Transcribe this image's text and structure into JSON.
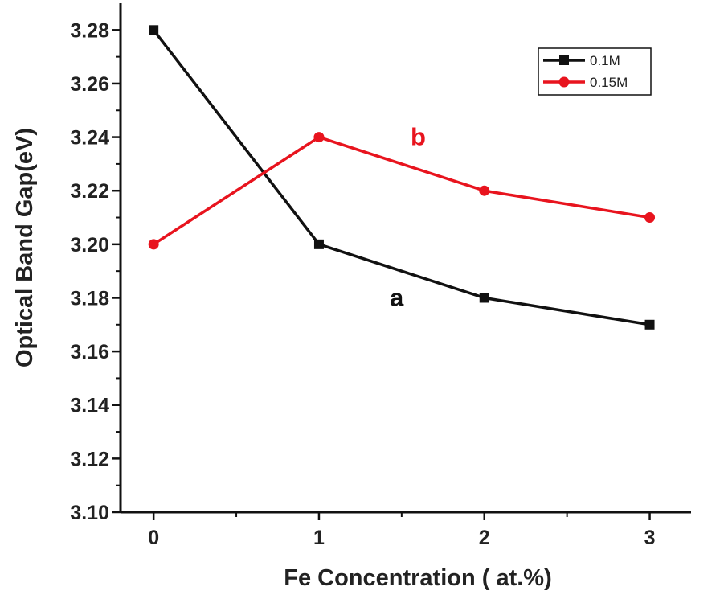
{
  "chart_data": {
    "type": "line",
    "title": "",
    "xlabel": "Fe Concentration ( at.%)",
    "ylabel": "Optical Band Gap(eV)",
    "xlim": [
      -0.2,
      3.25
    ],
    "ylim": [
      3.1,
      3.29
    ],
    "x": [
      0,
      1,
      2,
      3
    ],
    "xticks": [
      0,
      1,
      2,
      3
    ],
    "xtick_labels": [
      "0",
      "1",
      "2",
      "3"
    ],
    "yticks": [
      3.1,
      3.12,
      3.14,
      3.16,
      3.18,
      3.2,
      3.22,
      3.24,
      3.26,
      3.28
    ],
    "ytick_labels": [
      "3.10",
      "3.12",
      "3.14",
      "3.16",
      "3.18",
      "3.20",
      "3.22",
      "3.24",
      "3.26",
      "3.28"
    ],
    "grid": false,
    "legend_position": "top-right",
    "series": [
      {
        "name": "0.1M",
        "values": [
          3.28,
          3.2,
          3.18,
          3.17
        ],
        "color": "#111111",
        "marker": "square"
      },
      {
        "name": "0.15M",
        "values": [
          3.2,
          3.24,
          3.22,
          3.21
        ],
        "color": "#e8141e",
        "marker": "circle"
      }
    ],
    "annotations": [
      {
        "text": "a",
        "x": 1.47,
        "y": 3.177,
        "color": "#111111"
      },
      {
        "text": "b",
        "x": 1.6,
        "y": 3.237,
        "color": "#e8141e"
      }
    ]
  }
}
